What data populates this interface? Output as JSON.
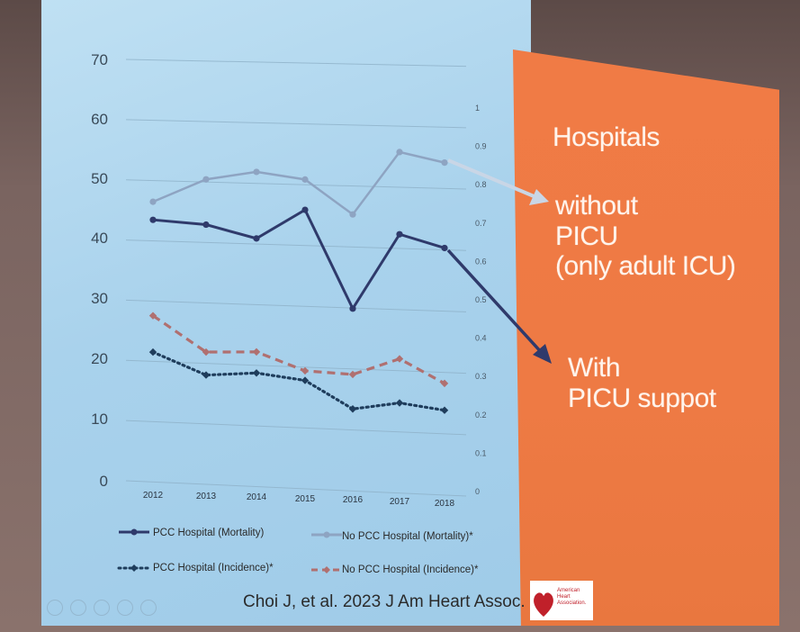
{
  "chart_data": {
    "type": "line",
    "categories": [
      "2012",
      "2013",
      "2014",
      "2015",
      "2016",
      "2017",
      "2018"
    ],
    "left_axis": {
      "ticks": [
        "0",
        "10",
        "20",
        "30",
        "40",
        "50",
        "60",
        "70"
      ],
      "ylim": [
        0,
        70
      ]
    },
    "right_axis": {
      "ticks": [
        "0",
        "0.1",
        "0.2",
        "0.3",
        "0.4",
        "0.5",
        "0.6",
        "0.7",
        "0.8",
        "0.9",
        "1"
      ],
      "ylim": [
        0,
        1
      ]
    },
    "series": [
      {
        "name": "PCC Hospital (Mortality)",
        "axis": "left",
        "values": [
          43.5,
          43,
          41,
          46,
          30,
          42.5,
          40.5
        ],
        "color": "#2f3a6b",
        "style": "solid",
        "marker": "circle"
      },
      {
        "name": "No PCC Hospital (Mortality)*",
        "axis": "left",
        "values": [
          46.5,
          50.5,
          52,
          51,
          45.5,
          56,
          54.5
        ],
        "color": "#8ea4c2",
        "style": "solid",
        "marker": "circle"
      },
      {
        "name": "PCC Hospital (Incidence)*",
        "axis": "right",
        "values": [
          0.335,
          0.28,
          0.29,
          0.275,
          0.205,
          0.225,
          0.21
        ],
        "color": "#1f3d5c",
        "style": "dotted",
        "marker": "diamond"
      },
      {
        "name": "No PCC Hospital (Incidence)*",
        "axis": "right",
        "values": [
          0.43,
          0.34,
          0.345,
          0.3,
          0.295,
          0.34,
          0.28
        ],
        "color": "#b07070",
        "style": "dashed",
        "marker": "diamond"
      }
    ],
    "grid": true,
    "legend": "bottom"
  },
  "annotations": {
    "hospitals": "Hospitals",
    "without_lines": [
      "without",
      "PICU",
      "(only adult ICU)"
    ],
    "with_lines": [
      "With",
      "PICU suppot"
    ]
  },
  "citation": "Choi J, et al. 2023 J Am Heart Assoc.",
  "logo": {
    "lines": [
      "American",
      "Heart",
      "Association."
    ]
  },
  "colors": {
    "orange_panel": "#ef7a44",
    "chart_bg": "#abd3ec",
    "arrow_light": "#c9d6e6",
    "arrow_dark": "#2f3a6b"
  }
}
